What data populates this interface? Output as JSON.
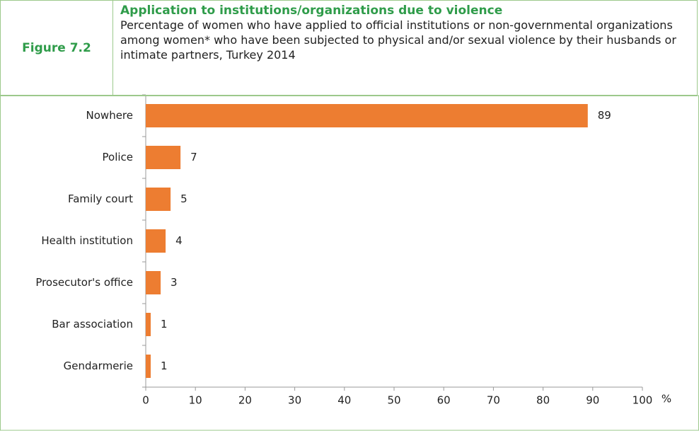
{
  "figure_label": "Figure 7.2",
  "chart_data": {
    "type": "hbar",
    "title": "Application to institutions/organizations due to violence",
    "subtitle": "Percentage of women who have applied to official institutions or non-governmental organizations among women* who have been subjected to physical and/or sexual violence by their husbands or intimate partners, Turkey 2014",
    "x_label": "%",
    "categories": [
      "Nowhere",
      "Police",
      "Family court",
      "Health institution",
      "Prosecutor's office",
      "Bar association",
      "Gendarmerie"
    ],
    "values": [
      89,
      7,
      5,
      4,
      3,
      1,
      1
    ],
    "color": "#ed7d31",
    "xlim": [
      0,
      100
    ],
    "xticks": [
      0,
      10,
      20,
      30,
      40,
      50,
      60,
      70,
      80,
      90,
      100
    ]
  }
}
